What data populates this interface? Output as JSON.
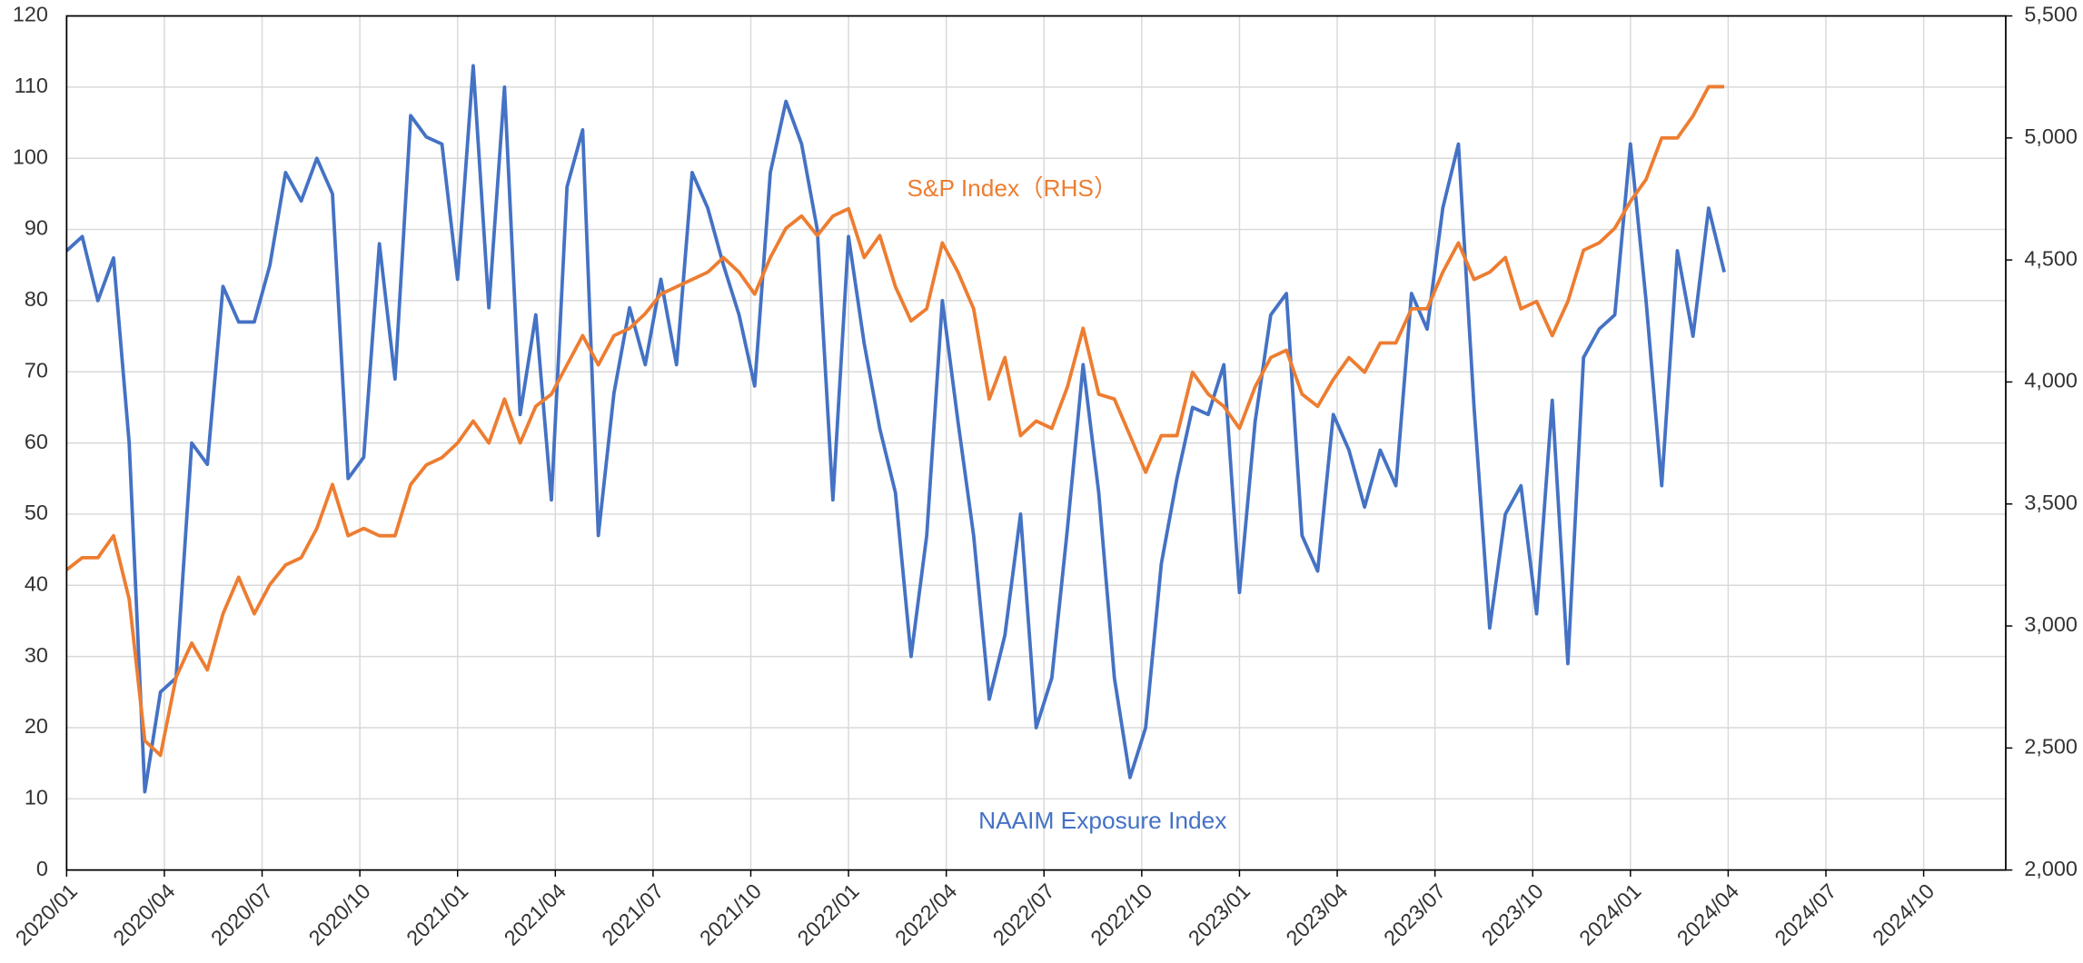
{
  "chart_data": {
    "type": "line",
    "x": [
      2020,
      2020.04,
      2020.08,
      2020.12,
      2020.16,
      2020.2,
      2020.24,
      2020.28,
      2020.32,
      2020.36,
      2020.4,
      2020.44,
      2020.48,
      2020.52,
      2020.56,
      2020.6,
      2020.64,
      2020.68,
      2020.72,
      2020.76,
      2020.8,
      2020.84,
      2020.88,
      2020.92,
      2020.96,
      2021,
      2021.04,
      2021.08,
      2021.12,
      2021.16,
      2021.2,
      2021.24,
      2021.28,
      2021.32,
      2021.36,
      2021.4,
      2021.44,
      2021.48,
      2021.52,
      2021.56,
      2021.6,
      2021.64,
      2021.68,
      2021.72,
      2021.76,
      2021.8,
      2021.84,
      2021.88,
      2021.92,
      2021.96,
      2022,
      2022.04,
      2022.08,
      2022.12,
      2022.16,
      2022.2,
      2022.24,
      2022.28,
      2022.32,
      2022.36,
      2022.4,
      2022.44,
      2022.48,
      2022.52,
      2022.56,
      2022.6,
      2022.64,
      2022.68,
      2022.72,
      2022.76,
      2022.8,
      2022.84,
      2022.88,
      2022.92,
      2022.96,
      2023,
      2023.04,
      2023.08,
      2023.12,
      2023.16,
      2023.2,
      2023.24,
      2023.28,
      2023.32,
      2023.36,
      2023.4,
      2023.44,
      2023.48,
      2023.52,
      2023.56,
      2023.6,
      2023.64,
      2023.68,
      2023.72,
      2023.76,
      2023.8,
      2023.84,
      2023.88,
      2023.92,
      2023.96,
      2024,
      2024.04,
      2024.08,
      2024.12,
      2024.16,
      2024.2,
      2024.24
    ],
    "series": [
      {
        "name": "NAAIM Exposure Index",
        "color": "#4472c4",
        "values": [
          87,
          89,
          80,
          86,
          60,
          11,
          25,
          27,
          60,
          57,
          82,
          77,
          77,
          85,
          98,
          94,
          100,
          95,
          55,
          58,
          88,
          69,
          106,
          103,
          102,
          83,
          113,
          79,
          110,
          64,
          78,
          52,
          96,
          104,
          47,
          67,
          79,
          71,
          83,
          71,
          98,
          93,
          85,
          78,
          68,
          98,
          108,
          102,
          90,
          52,
          89,
          74,
          62,
          53,
          30,
          47,
          80,
          63,
          47,
          24,
          33,
          50,
          20,
          27,
          48,
          71,
          53,
          27,
          13,
          20,
          43,
          55,
          65,
          64,
          71,
          39,
          63,
          78,
          81,
          47,
          42,
          64,
          59,
          51,
          59,
          54,
          81,
          76,
          93,
          102,
          65,
          34,
          50,
          54,
          36,
          66,
          29,
          72,
          76,
          78,
          102,
          80,
          54,
          87,
          75,
          93,
          84
        ]
      },
      {
        "name": "S&P Index（RHS）",
        "color": "#ed7d31",
        "axis": "y2",
        "values": [
          3230,
          3280,
          3280,
          3370,
          3110,
          2530,
          2470,
          2790,
          2930,
          2820,
          3050,
          3200,
          3050,
          3170,
          3250,
          3280,
          3400,
          3580,
          3370,
          3400,
          3370,
          3370,
          3580,
          3660,
          3690,
          3750,
          3840,
          3750,
          3930,
          3750,
          3900,
          3950,
          4070,
          4190,
          4070,
          4190,
          4220,
          4280,
          4360,
          4390,
          4420,
          4450,
          4510,
          4450,
          4360,
          4510,
          4630,
          4680,
          4600,
          4680,
          4710,
          4510,
          4600,
          4390,
          4250,
          4300,
          4570,
          4450,
          4300,
          3930,
          4100,
          3780,
          3840,
          3810,
          3980,
          4220,
          3950,
          3930,
          3780,
          3630,
          3780,
          3780,
          4040,
          3950,
          3900,
          3810,
          3980,
          4100,
          4130,
          3950,
          3900,
          4010,
          4100,
          4040,
          4160,
          4160,
          4300,
          4300,
          4450,
          4570,
          4420,
          4450,
          4510,
          4300,
          4330,
          4190,
          4330,
          4540,
          4570,
          4630,
          4740,
          4830,
          5000,
          5000,
          5090,
          5210,
          5210
        ]
      }
    ],
    "xlim": [
      2020,
      2024.96
    ],
    "xticks": [
      {
        "value": 2020,
        "label": "2020/01"
      },
      {
        "value": 2020.25,
        "label": "2020/04"
      },
      {
        "value": 2020.5,
        "label": "2020/07"
      },
      {
        "value": 2020.75,
        "label": "2020/10"
      },
      {
        "value": 2021,
        "label": "2021/01"
      },
      {
        "value": 2021.25,
        "label": "2021/04"
      },
      {
        "value": 2021.5,
        "label": "2021/07"
      },
      {
        "value": 2021.75,
        "label": "2021/10"
      },
      {
        "value": 2022,
        "label": "2022/01"
      },
      {
        "value": 2022.25,
        "label": "2022/04"
      },
      {
        "value": 2022.5,
        "label": "2022/07"
      },
      {
        "value": 2022.75,
        "label": "2022/10"
      },
      {
        "value": 2023,
        "label": "2023/01"
      },
      {
        "value": 2023.25,
        "label": "2023/04"
      },
      {
        "value": 2023.5,
        "label": "2023/07"
      },
      {
        "value": 2023.75,
        "label": "2023/10"
      },
      {
        "value": 2024,
        "label": "2024/01"
      },
      {
        "value": 2024.25,
        "label": "2024/04"
      },
      {
        "value": 2024.5,
        "label": "2024/07"
      },
      {
        "value": 2024.75,
        "label": "2024/10"
      }
    ],
    "ylim": [
      0,
      120
    ],
    "yticks": [
      0,
      10,
      20,
      30,
      40,
      50,
      60,
      70,
      80,
      90,
      100,
      110,
      120
    ],
    "y2lim": [
      2000,
      5500
    ],
    "y2ticks": [
      {
        "value": 2000,
        "label": "2,000"
      },
      {
        "value": 2500,
        "label": "2,500"
      },
      {
        "value": 3000,
        "label": "3,000"
      },
      {
        "value": 3500,
        "label": "3,500"
      },
      {
        "value": 4000,
        "label": "4,000"
      },
      {
        "value": 4500,
        "label": "4,500"
      },
      {
        "value": 5000,
        "label": "5,000"
      },
      {
        "value": 5500,
        "label": "5,500"
      }
    ],
    "grid": true
  }
}
